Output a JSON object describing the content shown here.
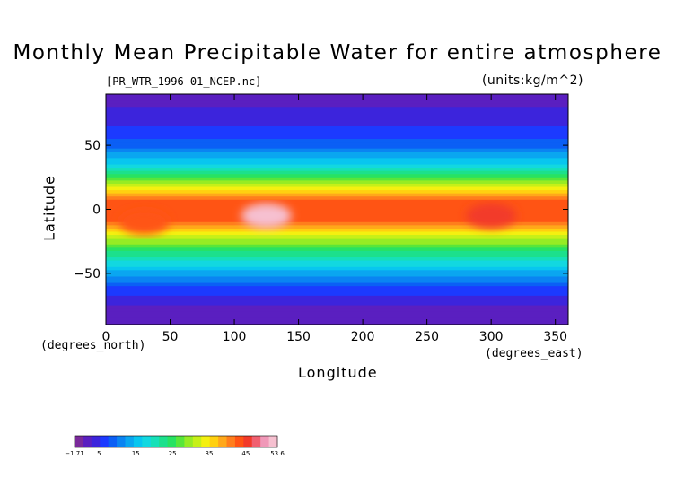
{
  "chart_data": {
    "type": "heatmap",
    "title": "Monthly Mean Precipitable Water for entire atmosphere",
    "subtitle_left": "[PR_WTR_1996-01_NCEP.nc]",
    "subtitle_right": "(units:kg/m^2)",
    "xlabel": "Longitude",
    "ylabel": "Latitude",
    "x_unit_label": "(degrees_east)",
    "y_unit_label": "(degrees_north)",
    "xlim": [
      0,
      360
    ],
    "ylim": [
      -90,
      90
    ],
    "x_ticks": [
      0,
      50,
      100,
      150,
      200,
      250,
      300,
      350
    ],
    "y_ticks": [
      50,
      0,
      -50
    ],
    "y_tick_labels": [
      "50",
      "0",
      "−50"
    ],
    "colorbar": {
      "min": -1.71,
      "max": 53.6,
      "tick_values": [
        -1.71,
        5,
        15,
        25,
        35,
        45,
        53.6
      ],
      "tick_labels": [
        "−1.71",
        "5",
        "15",
        "25",
        "35",
        "45",
        "53.6"
      ],
      "colors": [
        "#7a2a9a",
        "#5a1fc0",
        "#3c24dc",
        "#1c3aff",
        "#0b5ff5",
        "#0a84f2",
        "#0aa6f0",
        "#08c6ef",
        "#12d8e0",
        "#16e0b8",
        "#1ce08c",
        "#28e262",
        "#58e63a",
        "#96ec24",
        "#c6f018",
        "#f4f010",
        "#ffd010",
        "#ffa81a",
        "#ff7e1c",
        "#ff5414",
        "#f23a2a",
        "#f06070",
        "#f098b8",
        "#f6c0d0"
      ]
    },
    "band_values_by_latitude": [
      {
        "lat": 90,
        "value": 2
      },
      {
        "lat": 80,
        "value": 3
      },
      {
        "lat": 70,
        "value": 4
      },
      {
        "lat": 60,
        "value": 6
      },
      {
        "lat": 50,
        "value": 9
      },
      {
        "lat": 40,
        "value": 14
      },
      {
        "lat": 30,
        "value": 20
      },
      {
        "lat": 20,
        "value": 31
      },
      {
        "lat": 10,
        "value": 41
      },
      {
        "lat": 0,
        "value": 44
      },
      {
        "lat": -10,
        "value": 42
      },
      {
        "lat": -20,
        "value": 33
      },
      {
        "lat": -30,
        "value": 26
      },
      {
        "lat": -40,
        "value": 19
      },
      {
        "lat": -50,
        "value": 13
      },
      {
        "lat": -60,
        "value": 8
      },
      {
        "lat": -70,
        "value": 4
      },
      {
        "lat": -80,
        "value": 2
      },
      {
        "lat": -90,
        "value": 1
      }
    ],
    "regional_maxima": [
      {
        "lon": 125,
        "lat": -5,
        "value": 52
      },
      {
        "lon": 300,
        "lat": -5,
        "value": 46
      },
      {
        "lon": 30,
        "lat": -10,
        "value": 44
      }
    ],
    "grid": false
  }
}
